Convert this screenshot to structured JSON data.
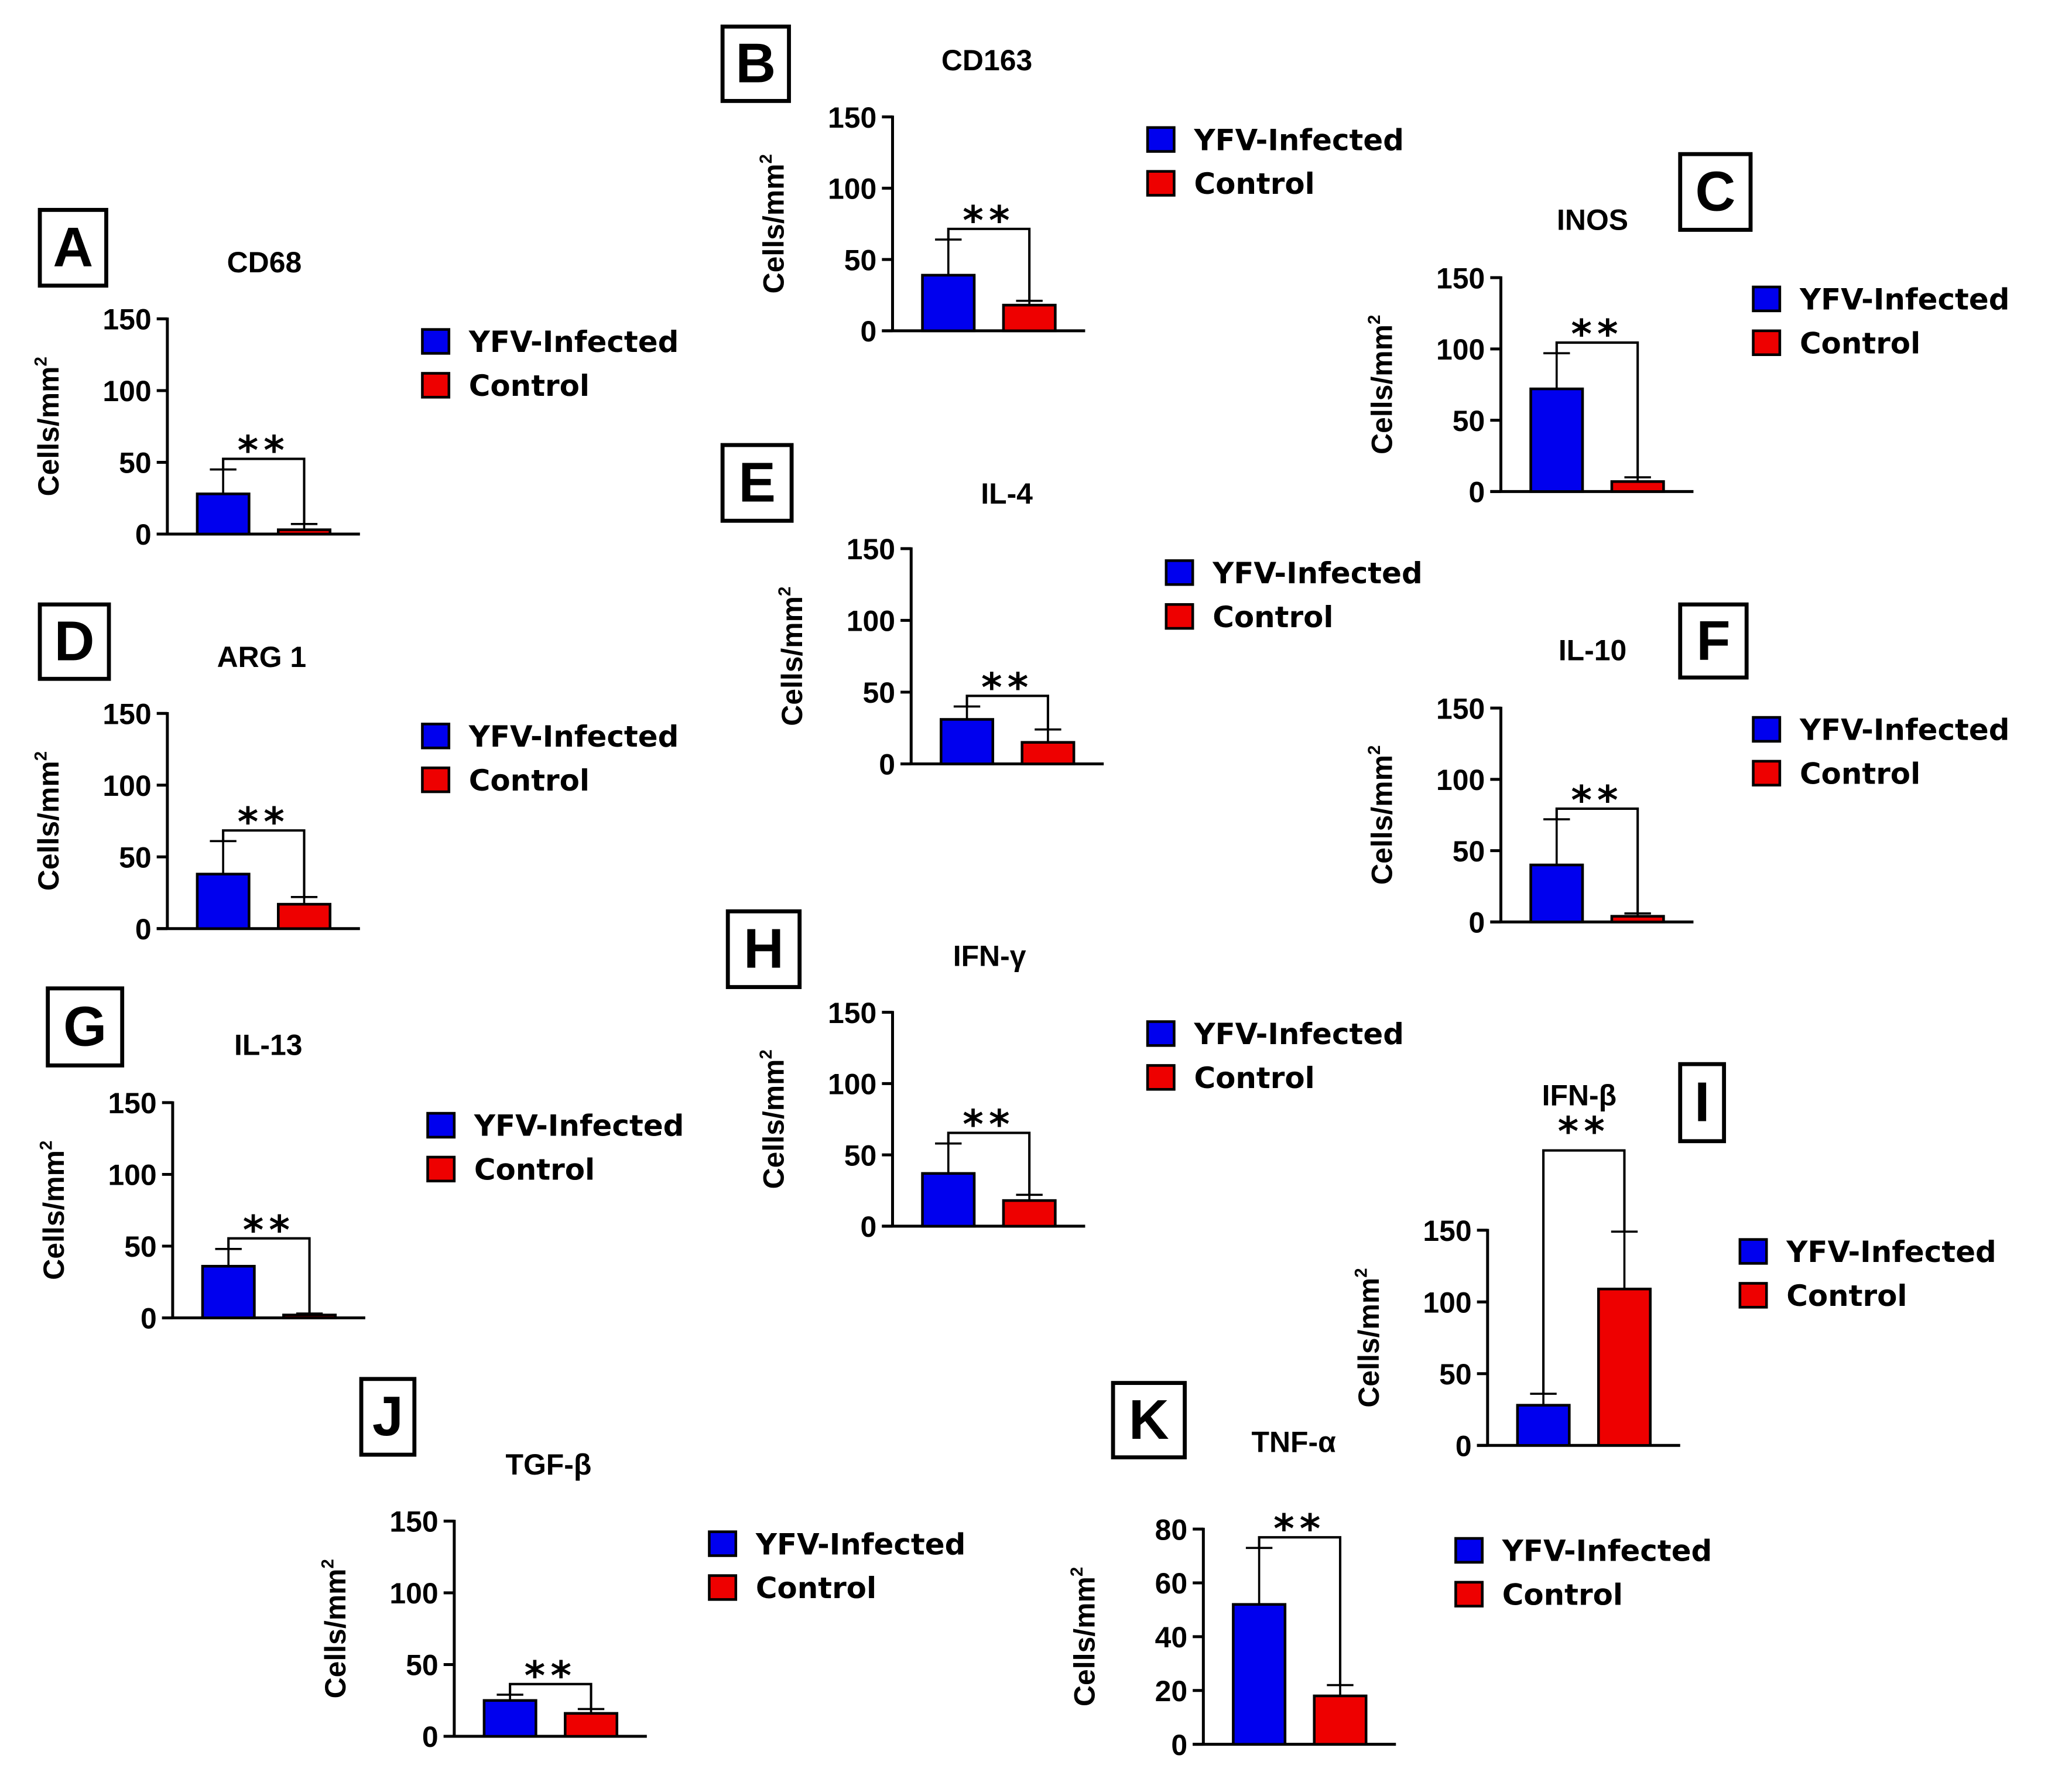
{
  "colors": {
    "infected": "#0000ee",
    "control": "#ee0000",
    "axis": "#000000"
  },
  "legend": {
    "infected": "YFV-Infected",
    "control": "Control"
  },
  "ylabel": "Cells/mm",
  "ylabel_sup": "2",
  "chart_data": [
    {
      "type": "bar",
      "panel": "A",
      "title": "CD68",
      "categories": [
        "YFV-Infected",
        "Control"
      ],
      "values": [
        28,
        3
      ],
      "errors": [
        17,
        4
      ],
      "ylim": [
        0,
        150
      ],
      "yticks": [
        0,
        50,
        100,
        150
      ],
      "significance": "**"
    },
    {
      "type": "bar",
      "panel": "B",
      "title": "CD163",
      "categories": [
        "YFV-Infected",
        "Control"
      ],
      "values": [
        39,
        18
      ],
      "errors": [
        25,
        3
      ],
      "ylim": [
        0,
        150
      ],
      "yticks": [
        0,
        50,
        100,
        150
      ],
      "significance": "**"
    },
    {
      "type": "bar",
      "panel": "C",
      "title": "INOS",
      "categories": [
        "YFV-Infected",
        "Control"
      ],
      "values": [
        72,
        7
      ],
      "errors": [
        25,
        3
      ],
      "ylim": [
        0,
        150
      ],
      "yticks": [
        0,
        50,
        100,
        150
      ],
      "significance": "**"
    },
    {
      "type": "bar",
      "panel": "D",
      "title": "ARG 1",
      "categories": [
        "YFV-Infected",
        "Control"
      ],
      "values": [
        38,
        17
      ],
      "errors": [
        23,
        5
      ],
      "ylim": [
        0,
        150
      ],
      "yticks": [
        0,
        50,
        100,
        150
      ],
      "significance": "**"
    },
    {
      "type": "bar",
      "panel": "E",
      "title": "IL-4",
      "categories": [
        "YFV-Infected",
        "Control"
      ],
      "values": [
        31,
        15
      ],
      "errors": [
        9,
        9
      ],
      "ylim": [
        0,
        150
      ],
      "yticks": [
        0,
        50,
        100,
        150
      ],
      "significance": "**"
    },
    {
      "type": "bar",
      "panel": "F",
      "title": "IL-10",
      "categories": [
        "YFV-Infected",
        "Control"
      ],
      "values": [
        40,
        4
      ],
      "errors": [
        32,
        2
      ],
      "ylim": [
        0,
        150
      ],
      "yticks": [
        0,
        50,
        100,
        150
      ],
      "significance": "**"
    },
    {
      "type": "bar",
      "panel": "G",
      "title": "IL-13",
      "categories": [
        "YFV-Infected",
        "Control"
      ],
      "values": [
        36,
        2
      ],
      "errors": [
        12,
        1
      ],
      "ylim": [
        0,
        150
      ],
      "yticks": [
        0,
        50,
        100,
        150
      ],
      "significance": "**"
    },
    {
      "type": "bar",
      "panel": "H",
      "title": "IFN-γ",
      "categories": [
        "YFV-Infected",
        "Control"
      ],
      "values": [
        37,
        18
      ],
      "errors": [
        21,
        4
      ],
      "ylim": [
        0,
        150
      ],
      "yticks": [
        0,
        50,
        100,
        150
      ],
      "significance": "**"
    },
    {
      "type": "bar",
      "panel": "I",
      "title": "IFN-β",
      "categories": [
        "YFV-Infected",
        "Control"
      ],
      "values": [
        28,
        109
      ],
      "errors": [
        8,
        40
      ],
      "ylim": [
        0,
        150
      ],
      "yticks": [
        0,
        50,
        100,
        150
      ],
      "significance": "**"
    },
    {
      "type": "bar",
      "panel": "J",
      "title": "TGF-β",
      "categories": [
        "YFV-Infected",
        "Control"
      ],
      "values": [
        25,
        16
      ],
      "errors": [
        4,
        3
      ],
      "ylim": [
        0,
        150
      ],
      "yticks": [
        0,
        50,
        100,
        150
      ],
      "significance": "**"
    },
    {
      "type": "bar",
      "panel": "K",
      "title": "TNF-α",
      "categories": [
        "YFV-Infected",
        "Control"
      ],
      "values": [
        52,
        18
      ],
      "errors": [
        21,
        4
      ],
      "ylim": [
        0,
        80
      ],
      "yticks": [
        0,
        20,
        40,
        60,
        80
      ],
      "significance": "**"
    }
  ]
}
